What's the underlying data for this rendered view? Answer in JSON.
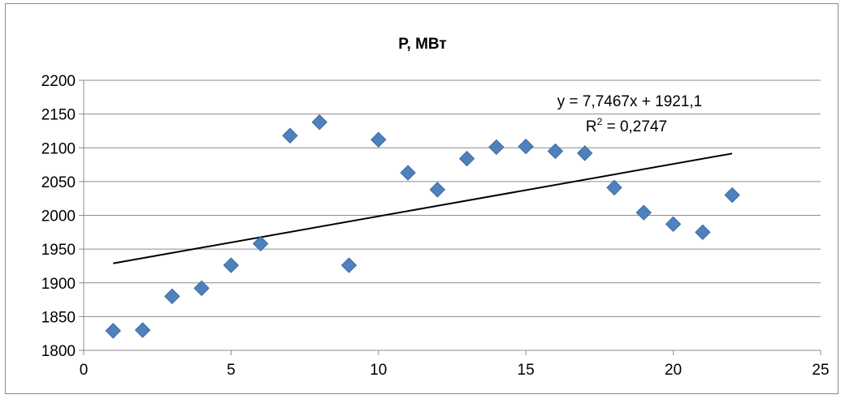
{
  "chart_data": {
    "type": "scatter",
    "title": "P, МВт",
    "xlabel": "",
    "ylabel": "",
    "xlim": [
      0,
      25
    ],
    "ylim": [
      1800,
      2200
    ],
    "xticks": [
      0,
      5,
      10,
      15,
      20,
      25
    ],
    "yticks": [
      1800,
      1850,
      1900,
      1950,
      2000,
      2050,
      2100,
      2150,
      2200
    ],
    "grid": "horizontal",
    "series": [
      {
        "marker": "diamond",
        "color": "#4F81BD",
        "x": [
          1,
          2,
          3,
          4,
          5,
          6,
          7,
          8,
          9,
          10,
          11,
          12,
          13,
          14,
          15,
          16,
          17,
          18,
          19,
          20,
          21,
          22
        ],
        "y": [
          1829,
          1830,
          1880,
          1892,
          1926,
          1958,
          2118,
          2138,
          1926,
          2112,
          2063,
          2038,
          2084,
          2101,
          2102,
          2095,
          2092,
          2041,
          2004,
          1987,
          1975,
          2030
        ]
      }
    ],
    "trendline": {
      "type": "linear",
      "slope": 7.7467,
      "intercept": 1921.1,
      "x_range": [
        1,
        22
      ],
      "color": "#000000",
      "equation_label": "y = 7,7467x + 1921,1",
      "r2_label_prefix": "R",
      "r2_label_sup": "2",
      "r2_label_value": " = 0,2747"
    }
  }
}
